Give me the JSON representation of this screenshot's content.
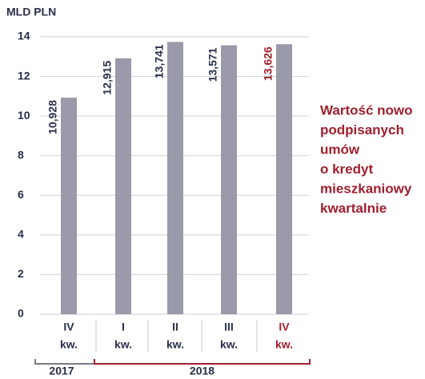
{
  "chart_data": {
    "type": "bar",
    "y_axis_label": "MLD PLN",
    "categories": [
      [
        "IV",
        "kw."
      ],
      [
        "I",
        "kw."
      ],
      [
        "II",
        "kw."
      ],
      [
        "III",
        "kw."
      ],
      [
        "IV",
        "kw."
      ]
    ],
    "values": [
      10.928,
      12.915,
      13.741,
      13.571,
      13.626
    ],
    "value_labels": [
      "10,928",
      "12,915",
      "13,741",
      "13,571",
      "13,626"
    ],
    "colors": [
      "#9a9aaa",
      "#9a9aaa",
      "#9a9aaa",
      "#9a9aaa",
      "#9a9aaa"
    ],
    "label_colors": [
      "#2a2f4a",
      "#2a2f4a",
      "#2a2f4a",
      "#2a2f4a",
      "#a01f2d"
    ],
    "groups": [
      {
        "label": "2017",
        "from": 0,
        "to": 0,
        "color": "#7a7a88"
      },
      {
        "label": "2018",
        "from": 1,
        "to": 4,
        "color": "#a01f2d"
      }
    ],
    "annotation": [
      "Wartość nowo",
      "podpisanych",
      "umów",
      "o kredyt",
      "mieszkaniowy",
      "kwartalnie"
    ],
    "annotation_color": "#a01f2d",
    "ylim": [
      0,
      14
    ],
    "yticks": [
      0,
      2,
      4,
      6,
      8,
      10,
      12,
      14
    ],
    "grid": true
  }
}
